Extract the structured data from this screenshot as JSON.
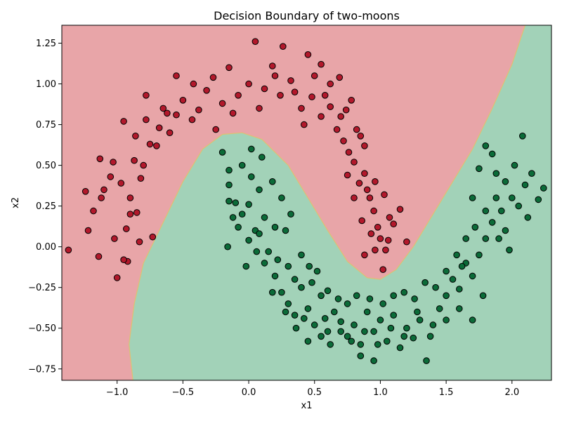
{
  "chart_data": {
    "type": "scatter",
    "title": "Decision Boundary of two-moons",
    "xlabel": "x1",
    "ylabel": "x2",
    "xlim": [
      -1.42,
      2.3
    ],
    "ylim": [
      -0.82,
      1.36
    ],
    "xticks": [
      -1.0,
      -0.5,
      0.0,
      0.5,
      1.0,
      1.5,
      2.0
    ],
    "xtick_labels": [
      "−1.0",
      "−0.5",
      "0.0",
      "0.5",
      "1.0",
      "1.5",
      "2.0"
    ],
    "yticks": [
      -0.75,
      -0.5,
      -0.25,
      0.0,
      0.25,
      0.5,
      0.75,
      1.0,
      1.25
    ],
    "ytick_labels": [
      "−0.75",
      "−0.50",
      "−0.25",
      "0.00",
      "0.25",
      "0.50",
      "0.75",
      "1.00",
      "1.25"
    ],
    "grid": false,
    "colors": {
      "class0_region": "#e8a5a8",
      "class1_region": "#a2d2b8",
      "class0_point": "#b2182b",
      "class1_point": "#0b6b38",
      "point_edge": "#000000"
    },
    "decision_boundary": [
      [
        -0.88,
        -0.82
      ],
      [
        -0.91,
        -0.6
      ],
      [
        -0.87,
        -0.35
      ],
      [
        -0.8,
        -0.1
      ],
      [
        -0.65,
        0.15
      ],
      [
        -0.5,
        0.4
      ],
      [
        -0.35,
        0.6
      ],
      [
        -0.2,
        0.69
      ],
      [
        -0.05,
        0.7
      ],
      [
        0.1,
        0.66
      ],
      [
        0.3,
        0.5
      ],
      [
        0.45,
        0.3
      ],
      [
        0.6,
        0.1
      ],
      [
        0.75,
        -0.09
      ],
      [
        0.9,
        -0.19
      ],
      [
        1.0,
        -0.2
      ],
      [
        1.12,
        -0.14
      ],
      [
        1.25,
        0.0
      ],
      [
        1.4,
        0.2
      ],
      [
        1.55,
        0.4
      ],
      [
        1.7,
        0.6
      ],
      [
        1.85,
        0.85
      ],
      [
        2.0,
        1.12
      ],
      [
        2.1,
        1.36
      ]
    ],
    "series": [
      {
        "class": 0,
        "points": [
          [
            -1.37,
            -0.02
          ],
          [
            -1.22,
            0.1
          ],
          [
            -1.14,
            -0.06
          ],
          [
            -1.0,
            -0.19
          ],
          [
            -1.24,
            0.34
          ],
          [
            -1.1,
            0.35
          ],
          [
            -1.18,
            0.22
          ],
          [
            -1.13,
            0.54
          ],
          [
            -1.05,
            0.43
          ],
          [
            -0.97,
            0.39
          ],
          [
            -0.9,
            0.3
          ],
          [
            -0.85,
            0.21
          ],
          [
            -0.93,
            0.11
          ],
          [
            -1.02,
            0.05
          ],
          [
            -0.83,
            0.03
          ],
          [
            -0.73,
            0.06
          ],
          [
            -0.92,
            -0.09
          ],
          [
            -0.8,
            0.5
          ],
          [
            -0.75,
            0.63
          ],
          [
            -0.86,
            0.68
          ],
          [
            -0.78,
            0.78
          ],
          [
            -0.68,
            0.73
          ],
          [
            -0.6,
            0.7
          ],
          [
            -0.65,
            0.85
          ],
          [
            -0.55,
            0.81
          ],
          [
            -0.5,
            0.9
          ],
          [
            -0.43,
            0.78
          ],
          [
            -0.38,
            0.84
          ],
          [
            -0.32,
            0.96
          ],
          [
            -0.2,
            0.88
          ],
          [
            -0.27,
            1.04
          ],
          [
            -0.15,
            1.1
          ],
          [
            -0.08,
            0.93
          ],
          [
            0.0,
            1.0
          ],
          [
            0.05,
            1.26
          ],
          [
            0.12,
            0.97
          ],
          [
            0.18,
            1.11
          ],
          [
            0.24,
            0.93
          ],
          [
            0.32,
            1.02
          ],
          [
            0.4,
            0.85
          ],
          [
            0.45,
            1.18
          ],
          [
            0.5,
            1.05
          ],
          [
            0.55,
            0.8
          ],
          [
            0.58,
            0.93
          ],
          [
            0.62,
            0.86
          ],
          [
            0.67,
            0.72
          ],
          [
            0.7,
            0.8
          ],
          [
            0.72,
            0.65
          ],
          [
            0.76,
            0.58
          ],
          [
            0.8,
            0.52
          ],
          [
            0.84,
            0.39
          ],
          [
            0.88,
            0.45
          ],
          [
            0.92,
            0.3
          ],
          [
            0.95,
            0.22
          ],
          [
            0.98,
            0.12
          ],
          [
            1.0,
            0.05
          ],
          [
            0.96,
            -0.02
          ],
          [
            1.02,
            -0.14
          ],
          [
            1.06,
            0.04
          ],
          [
            1.1,
            0.14
          ],
          [
            1.15,
            0.23
          ],
          [
            1.2,
            0.03
          ],
          [
            0.85,
            0.68
          ],
          [
            0.78,
            0.9
          ],
          [
            0.69,
            1.04
          ],
          [
            0.55,
            1.12
          ],
          [
            0.26,
            1.23
          ],
          [
            -0.55,
            1.05
          ],
          [
            -0.78,
            0.93
          ],
          [
            -0.95,
            0.77
          ],
          [
            -1.03,
            0.52
          ],
          [
            -1.12,
            0.3
          ],
          [
            -0.95,
            -0.08
          ],
          [
            -0.9,
            0.2
          ],
          [
            -0.87,
            0.53
          ],
          [
            -0.82,
            0.42
          ],
          [
            -0.7,
            0.62
          ],
          [
            -0.62,
            0.82
          ],
          [
            -0.42,
            1.0
          ],
          [
            -0.25,
            0.72
          ],
          [
            -0.12,
            0.82
          ],
          [
            0.08,
            0.85
          ],
          [
            0.2,
            1.05
          ],
          [
            0.35,
            0.95
          ],
          [
            0.42,
            0.75
          ],
          [
            0.48,
            0.92
          ],
          [
            0.62,
            1.0
          ],
          [
            0.74,
            0.84
          ],
          [
            0.82,
            0.72
          ],
          [
            0.88,
            0.62
          ],
          [
            0.9,
            0.35
          ],
          [
            0.96,
            0.4
          ],
          [
            1.03,
            0.32
          ],
          [
            1.07,
            0.18
          ],
          [
            0.86,
            0.16
          ],
          [
            0.8,
            0.3
          ],
          [
            0.75,
            0.44
          ],
          [
            0.93,
            0.08
          ],
          [
            1.04,
            -0.02
          ],
          [
            0.88,
            -0.05
          ]
        ]
      },
      {
        "class": 1,
        "points": [
          [
            -0.2,
            0.58
          ],
          [
            -0.15,
            0.47
          ],
          [
            -0.05,
            0.5
          ],
          [
            0.02,
            0.43
          ],
          [
            0.08,
            0.35
          ],
          [
            0.0,
            0.26
          ],
          [
            0.12,
            0.18
          ],
          [
            0.05,
            0.1
          ],
          [
            -0.15,
            0.28
          ],
          [
            -0.12,
            0.18
          ],
          [
            -0.08,
            0.12
          ],
          [
            -0.16,
            0.0
          ],
          [
            0.0,
            0.04
          ],
          [
            0.06,
            -0.03
          ],
          [
            0.15,
            -0.03
          ],
          [
            0.22,
            -0.08
          ],
          [
            0.28,
            0.1
          ],
          [
            0.3,
            -0.12
          ],
          [
            0.2,
            -0.18
          ],
          [
            0.25,
            -0.28
          ],
          [
            0.35,
            -0.2
          ],
          [
            0.4,
            -0.25
          ],
          [
            0.3,
            -0.35
          ],
          [
            0.35,
            -0.42
          ],
          [
            0.45,
            -0.38
          ],
          [
            0.5,
            -0.48
          ],
          [
            0.55,
            -0.3
          ],
          [
            0.6,
            -0.52
          ],
          [
            0.65,
            -0.4
          ],
          [
            0.7,
            -0.46
          ],
          [
            0.75,
            -0.55
          ],
          [
            0.8,
            -0.48
          ],
          [
            0.85,
            -0.6
          ],
          [
            0.9,
            -0.4
          ],
          [
            0.95,
            -0.52
          ],
          [
            1.0,
            -0.45
          ],
          [
            1.05,
            -0.58
          ],
          [
            1.1,
            -0.42
          ],
          [
            1.15,
            -0.62
          ],
          [
            1.2,
            -0.5
          ],
          [
            1.25,
            -0.56
          ],
          [
            1.3,
            -0.45
          ],
          [
            1.35,
            -0.7
          ],
          [
            1.4,
            -0.48
          ],
          [
            1.45,
            -0.38
          ],
          [
            1.5,
            -0.3
          ],
          [
            1.55,
            -0.2
          ],
          [
            1.6,
            -0.26
          ],
          [
            1.65,
            -0.1
          ],
          [
            1.7,
            -0.18
          ],
          [
            1.75,
            -0.05
          ],
          [
            1.8,
            0.05
          ],
          [
            1.85,
            0.15
          ],
          [
            1.88,
            0.3
          ],
          [
            1.92,
            0.22
          ],
          [
            1.95,
            0.4
          ],
          [
            2.0,
            0.3
          ],
          [
            2.05,
            0.25
          ],
          [
            2.08,
            0.68
          ],
          [
            2.12,
            0.18
          ],
          [
            2.15,
            0.45
          ],
          [
            2.2,
            0.29
          ],
          [
            2.24,
            0.36
          ],
          [
            1.8,
            0.62
          ],
          [
            1.85,
            0.57
          ],
          [
            1.75,
            0.48
          ],
          [
            1.7,
            0.3
          ],
          [
            1.78,
            -0.3
          ],
          [
            1.7,
            -0.45
          ],
          [
            1.6,
            -0.38
          ],
          [
            0.95,
            -0.7
          ],
          [
            0.85,
            -0.67
          ],
          [
            0.45,
            -0.58
          ],
          [
            0.55,
            -0.55
          ],
          [
            -0.15,
            0.38
          ],
          [
            -0.1,
            0.27
          ],
          [
            0.02,
            0.6
          ],
          [
            0.1,
            0.55
          ],
          [
            0.18,
            0.4
          ],
          [
            0.25,
            0.3
          ],
          [
            0.2,
            0.12
          ],
          [
            0.32,
            0.2
          ],
          [
            0.4,
            -0.05
          ],
          [
            0.46,
            -0.12
          ],
          [
            0.52,
            -0.15
          ],
          [
            0.48,
            -0.22
          ],
          [
            0.6,
            -0.27
          ],
          [
            0.68,
            -0.32
          ],
          [
            0.75,
            -0.35
          ],
          [
            0.82,
            -0.3
          ],
          [
            0.92,
            -0.32
          ],
          [
            1.02,
            -0.35
          ],
          [
            1.1,
            -0.3
          ],
          [
            1.18,
            -0.28
          ],
          [
            1.26,
            -0.32
          ],
          [
            1.34,
            -0.22
          ],
          [
            1.42,
            -0.25
          ],
          [
            1.5,
            -0.15
          ],
          [
            1.58,
            -0.05
          ],
          [
            1.65,
            0.05
          ],
          [
            1.72,
            0.12
          ],
          [
            1.8,
            0.22
          ],
          [
            1.9,
            0.05
          ],
          [
            1.98,
            -0.02
          ],
          [
            1.88,
            0.45
          ],
          [
            2.02,
            0.5
          ],
          [
            2.1,
            0.38
          ],
          [
            1.95,
            0.1
          ],
          [
            1.62,
            -0.12
          ],
          [
            1.5,
            -0.45
          ],
          [
            1.38,
            -0.55
          ],
          [
            1.28,
            -0.4
          ],
          [
            1.18,
            -0.55
          ],
          [
            1.08,
            -0.5
          ],
          [
            0.98,
            -0.6
          ],
          [
            0.88,
            -0.52
          ],
          [
            0.78,
            -0.58
          ],
          [
            0.7,
            -0.52
          ],
          [
            0.62,
            -0.6
          ],
          [
            0.58,
            -0.44
          ],
          [
            0.42,
            -0.44
          ],
          [
            0.36,
            -0.5
          ],
          [
            0.28,
            -0.4
          ],
          [
            0.18,
            -0.28
          ],
          [
            0.12,
            -0.1
          ],
          [
            -0.02,
            -0.12
          ],
          [
            0.08,
            0.08
          ],
          [
            -0.05,
            0.2
          ]
        ]
      }
    ]
  }
}
